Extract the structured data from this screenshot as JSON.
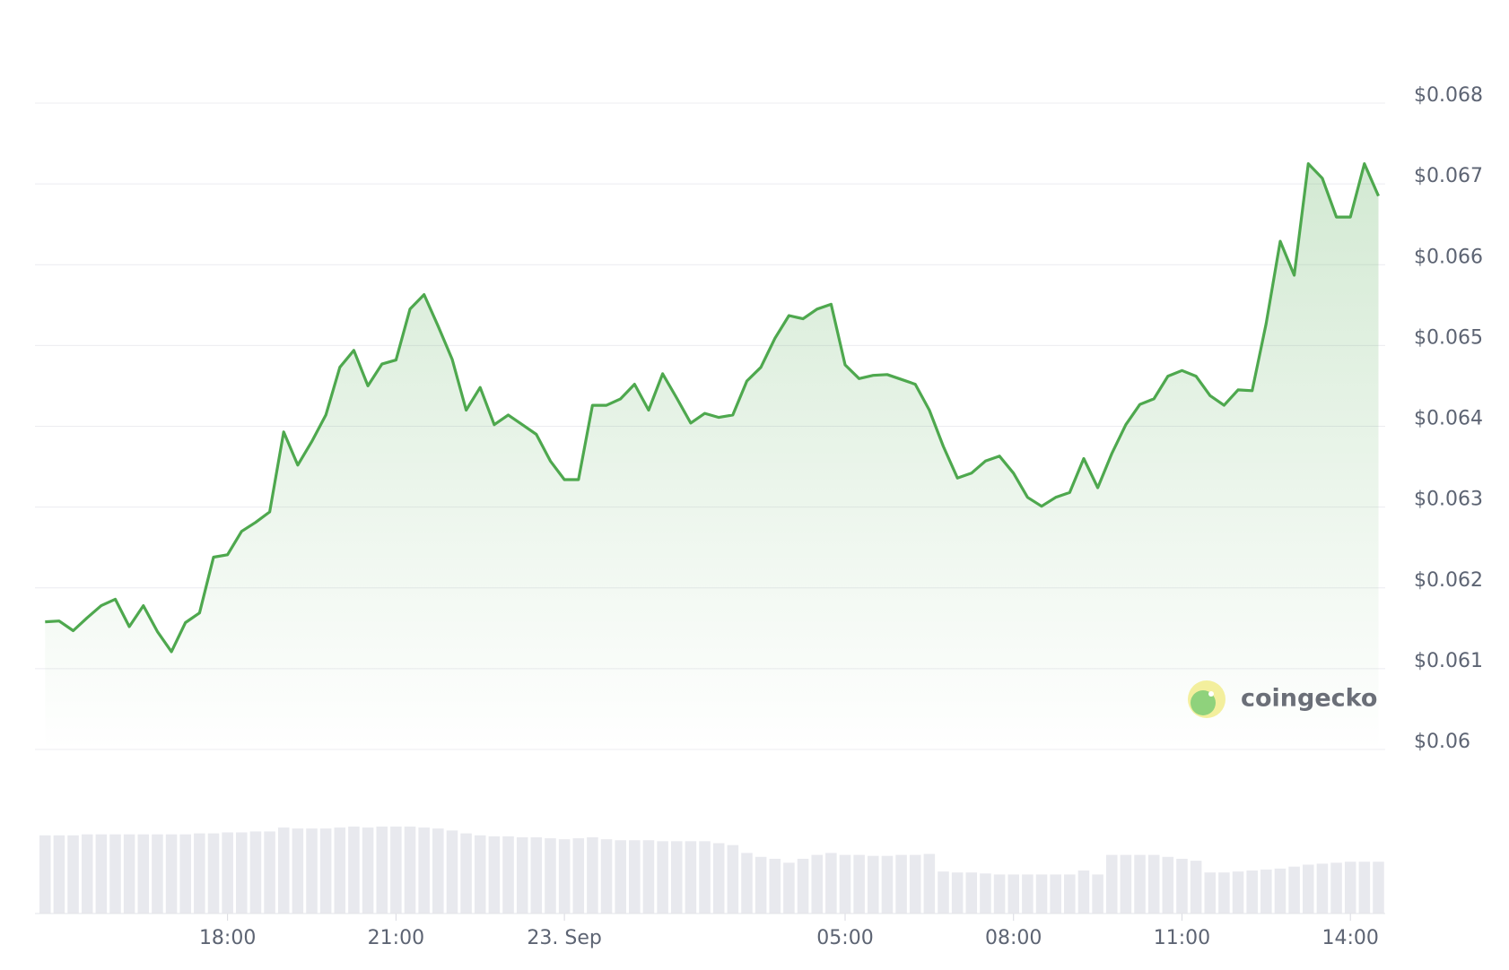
{
  "chart_data": {
    "type": "line",
    "x": [
      14.75,
      15,
      15.25,
      15.5,
      15.75,
      16,
      16.25,
      16.5,
      16.75,
      17,
      17.25,
      17.5,
      17.75,
      18,
      18.25,
      18.5,
      18.75,
      19,
      19.25,
      19.5,
      19.75,
      20,
      20.25,
      20.5,
      20.75,
      21,
      21.25,
      21.5,
      21.75,
      22,
      22.25,
      22.5,
      22.75,
      23,
      23.25,
      23.5,
      23.75,
      24,
      24.25,
      24.5,
      24.75,
      25,
      25.25,
      25.5,
      25.75,
      26,
      26.25,
      26.5,
      26.75,
      27,
      27.25,
      27.5,
      27.75,
      28,
      28.25,
      28.5,
      28.75,
      29,
      29.25,
      29.5,
      29.75,
      30,
      30.25,
      30.5,
      30.75,
      31,
      31.25,
      31.5,
      31.75,
      32,
      32.25,
      32.5,
      32.75,
      33,
      33.25,
      33.5,
      33.75,
      34,
      34.25,
      34.5,
      34.75,
      35,
      35.25,
      35.5,
      35.75,
      36,
      36.25,
      36.5,
      36.75,
      37,
      37.25,
      37.5,
      37.75,
      38,
      38.25,
      38.5
    ],
    "series": [
      {
        "color": "#4ea84e",
        "values": [
          0.06158,
          0.06159,
          0.06147,
          0.06163,
          0.06178,
          0.06186,
          0.06152,
          0.06178,
          0.06146,
          0.06121,
          0.06157,
          0.06169,
          0.06238,
          0.06241,
          0.0627,
          0.06281,
          0.06294,
          0.06393,
          0.06352,
          0.06381,
          0.06414,
          0.06473,
          0.06494,
          0.0645,
          0.06477,
          0.06482,
          0.06545,
          0.06563,
          0.06524,
          0.06483,
          0.0642,
          0.06448,
          0.06402,
          0.06414,
          0.06402,
          0.0639,
          0.06357,
          0.06334,
          0.06334,
          0.06426,
          0.06426,
          0.06434,
          0.06452,
          0.0642,
          0.06465,
          0.06435,
          0.06404,
          0.06416,
          0.06411,
          0.06414,
          0.06456,
          0.06473,
          0.06509,
          0.06537,
          0.06533,
          0.06545,
          0.06551,
          0.06476,
          0.06459,
          0.06463,
          0.06464,
          0.06458,
          0.06452,
          0.0642,
          0.06375,
          0.06336,
          0.06342,
          0.06357,
          0.06363,
          0.06342,
          0.06312,
          0.06301,
          0.06312,
          0.06318,
          0.0636,
          0.06324,
          0.06366,
          0.06402,
          0.06427,
          0.06434,
          0.06462,
          0.06469,
          0.06462,
          0.06438,
          0.06426,
          0.06445,
          0.06444,
          0.06527,
          0.06629,
          0.06587,
          0.06725,
          0.06707,
          0.06659,
          0.06659,
          0.06725,
          0.06685
        ]
      }
    ],
    "volume": [
      80,
      80,
      80,
      81,
      81,
      81,
      81,
      81,
      81,
      81,
      81,
      82,
      82,
      83,
      83,
      84,
      84,
      88,
      87,
      87,
      87,
      88,
      89,
      88,
      89,
      89,
      89,
      88,
      87,
      85,
      82,
      80,
      79,
      79,
      78,
      78,
      77,
      76,
      77,
      78,
      76,
      75,
      75,
      75,
      74,
      74,
      74,
      74,
      72,
      70,
      62,
      58,
      56,
      52,
      56,
      60,
      62,
      60,
      60,
      59,
      59,
      60,
      60,
      61,
      43,
      42,
      42,
      41,
      40,
      40,
      40,
      40,
      40,
      40,
      44,
      40,
      60,
      60,
      60,
      60,
      58,
      56,
      54,
      42,
      42,
      43,
      44,
      45,
      46,
      48,
      50,
      51,
      52,
      53,
      53,
      53
    ],
    "volume_color": "#e8e9ee",
    "xlim": [
      14.57,
      38.62
    ],
    "xticks": [
      {
        "value": 18,
        "label": "18:00"
      },
      {
        "value": 21,
        "label": "21:00"
      },
      {
        "value": 24,
        "label": "23. Sep"
      },
      {
        "value": 29,
        "label": "05:00"
      },
      {
        "value": 32,
        "label": "08:00"
      },
      {
        "value": 35,
        "label": "11:00"
      },
      {
        "value": 38,
        "label": "14:00"
      }
    ],
    "ylim": [
      0.06,
      0.068
    ],
    "yticks": [
      {
        "value": 0.06,
        "label": "$0.06"
      },
      {
        "value": 0.061,
        "label": "$0.061"
      },
      {
        "value": 0.062,
        "label": "$0.062"
      },
      {
        "value": 0.063,
        "label": "$0.063"
      },
      {
        "value": 0.064,
        "label": "$0.064"
      },
      {
        "value": 0.065,
        "label": "$0.065"
      },
      {
        "value": 0.066,
        "label": "$0.066"
      },
      {
        "value": 0.067,
        "label": "$0.067"
      },
      {
        "value": 0.068,
        "label": "$0.068"
      }
    ],
    "grid": true,
    "watermark": "coingecko"
  }
}
